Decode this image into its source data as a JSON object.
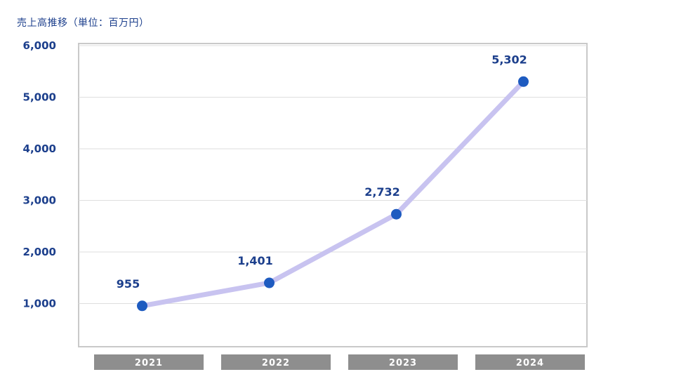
{
  "chart_data": {
    "type": "line",
    "title": "売上高推移（単位：百万円）",
    "xlabel": "",
    "ylabel": "",
    "categories": [
      "2021",
      "2022",
      "2023",
      "2024"
    ],
    "series": [
      {
        "values": [
          955,
          1401,
          2732,
          5302
        ]
      }
    ],
    "data_labels": [
      "955",
      "1,401",
      "2,732",
      "5,302"
    ],
    "yticks": [
      1000,
      2000,
      3000,
      4000,
      5000,
      6000
    ],
    "ytick_labels": [
      "1,000",
      "2,000",
      "3,000",
      "4,000",
      "5,000",
      "6,000"
    ],
    "ylim": [
      0,
      6000
    ],
    "grid": true,
    "legend": "none",
    "colors": {
      "line": "#c8c3f0",
      "marker": "#1e5bc0",
      "text": "#1c3f8c",
      "grid": "#dedede",
      "frame": "#c9c9c9",
      "category_box": "#8e8e8e"
    }
  }
}
